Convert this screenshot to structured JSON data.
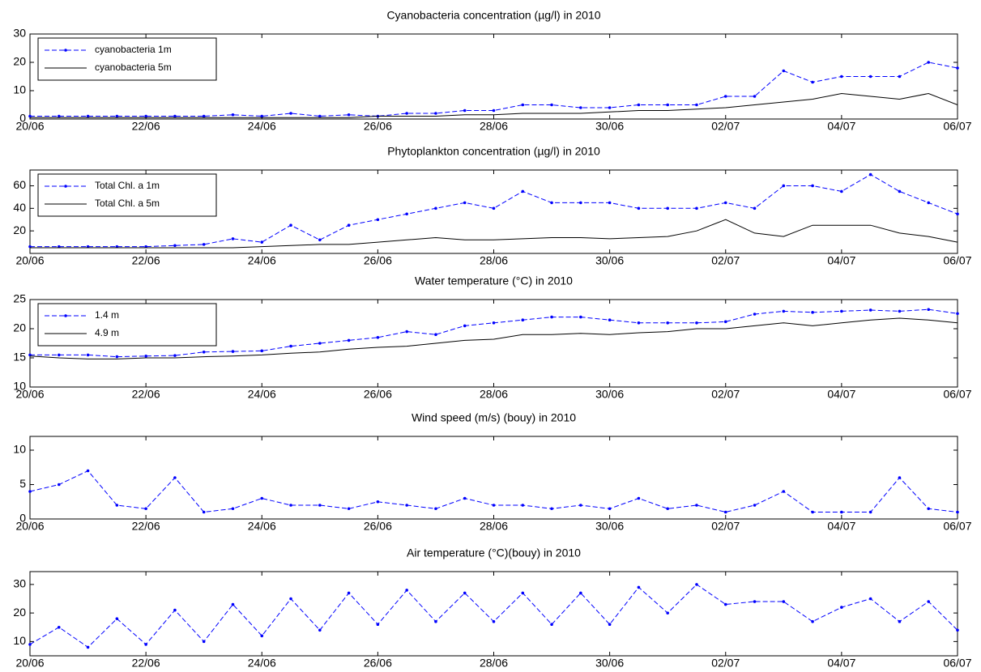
{
  "chart_data": [
    {
      "type": "line",
      "title": "Cyanobacteria concentration (µg/l) in 2010",
      "legend": "upper left",
      "x": [
        0,
        0.5,
        1,
        1.5,
        2,
        2.5,
        3,
        3.5,
        4,
        4.5,
        5,
        5.5,
        6,
        6.5,
        7,
        7.5,
        8,
        8.5,
        9,
        9.5,
        10,
        10.5,
        11,
        11.5,
        12,
        12.5,
        13,
        13.5,
        14,
        14.5,
        15,
        15.5,
        16
      ],
      "xlim": [
        0,
        16
      ],
      "xticks": [
        {
          "value": 0,
          "label": "20/06"
        },
        {
          "value": 2,
          "label": "22/06"
        },
        {
          "value": 4,
          "label": "24/06"
        },
        {
          "value": 6,
          "label": "26/06"
        },
        {
          "value": 8,
          "label": "28/06"
        },
        {
          "value": 10,
          "label": "30/06"
        },
        {
          "value": 12,
          "label": "02/07"
        },
        {
          "value": 14,
          "label": "04/07"
        },
        {
          "value": 16,
          "label": "06/07"
        }
      ],
      "ylim": [
        0,
        30
      ],
      "yticks": [
        0,
        10,
        20,
        30
      ],
      "series": [
        {
          "name": "cyanobacteria 1m",
          "color": "#0000ff",
          "linestyle": "dashed",
          "values": [
            1,
            1,
            1,
            1,
            1,
            1,
            1,
            1.5,
            1,
            2,
            1,
            1.5,
            1,
            2,
            2,
            3,
            3,
            5,
            5,
            4,
            4,
            5,
            5,
            5,
            8,
            8,
            17,
            13,
            15,
            15,
            15,
            20,
            18
          ]
        },
        {
          "name": "cyanobacteria 5m",
          "color": "#000000",
          "linestyle": "solid",
          "values": [
            0.5,
            0.5,
            0.5,
            0.5,
            0.5,
            0.5,
            0.5,
            0.5,
            0.5,
            0.5,
            0.5,
            0.5,
            1,
            1,
            1,
            1.5,
            1.5,
            2,
            2,
            2,
            2.5,
            3,
            3,
            3.5,
            4,
            5,
            6,
            7,
            9,
            8,
            7,
            9,
            5
          ]
        }
      ]
    },
    {
      "type": "line",
      "title": "Phytoplankton concentration (µg/l) in 2010",
      "legend": "upper left",
      "x": [
        0,
        0.5,
        1,
        1.5,
        2,
        2.5,
        3,
        3.5,
        4,
        4.5,
        5,
        5.5,
        6,
        6.5,
        7,
        7.5,
        8,
        8.5,
        9,
        9.5,
        10,
        10.5,
        11,
        11.5,
        12,
        12.5,
        13,
        13.5,
        14,
        14.5,
        15,
        15.5,
        16
      ],
      "xlim": [
        0,
        16
      ],
      "xticks": [
        {
          "value": 0,
          "label": "20/06"
        },
        {
          "value": 2,
          "label": "22/06"
        },
        {
          "value": 4,
          "label": "24/06"
        },
        {
          "value": 6,
          "label": "26/06"
        },
        {
          "value": 8,
          "label": "28/06"
        },
        {
          "value": 10,
          "label": "30/06"
        },
        {
          "value": 12,
          "label": "02/07"
        },
        {
          "value": 14,
          "label": "04/07"
        },
        {
          "value": 16,
          "label": "06/07"
        }
      ],
      "ylim": [
        0,
        74
      ],
      "yticks": [
        20,
        40,
        60
      ],
      "series": [
        {
          "name": "Total Chl. a 1m",
          "color": "#0000ff",
          "linestyle": "dashed",
          "values": [
            6,
            6,
            6,
            6,
            6,
            7,
            8,
            13,
            10,
            25,
            12,
            25,
            30,
            35,
            40,
            45,
            40,
            55,
            45,
            45,
            45,
            40,
            40,
            40,
            45,
            40,
            60,
            60,
            55,
            70,
            55,
            45,
            35
          ]
        },
        {
          "name": "Total Chl. a 5m",
          "color": "#000000",
          "linestyle": "solid",
          "values": [
            5,
            5,
            5,
            5,
            5,
            5,
            5,
            5,
            6,
            7,
            8,
            8,
            10,
            12,
            14,
            12,
            12,
            13,
            14,
            14,
            13,
            14,
            15,
            20,
            30,
            18,
            15,
            25,
            25,
            25,
            18,
            15,
            10
          ]
        }
      ]
    },
    {
      "type": "line",
      "title": "Water temperature (°C) in 2010",
      "legend": "upper left",
      "x": [
        0,
        0.5,
        1,
        1.5,
        2,
        2.5,
        3,
        3.5,
        4,
        4.5,
        5,
        5.5,
        6,
        6.5,
        7,
        7.5,
        8,
        8.5,
        9,
        9.5,
        10,
        10.5,
        11,
        11.5,
        12,
        12.5,
        13,
        13.5,
        14,
        14.5,
        15,
        15.5,
        16
      ],
      "xlim": [
        0,
        16
      ],
      "xticks": [
        {
          "value": 0,
          "label": "20/06"
        },
        {
          "value": 2,
          "label": "22/06"
        },
        {
          "value": 4,
          "label": "24/06"
        },
        {
          "value": 6,
          "label": "26/06"
        },
        {
          "value": 8,
          "label": "28/06"
        },
        {
          "value": 10,
          "label": "30/06"
        },
        {
          "value": 12,
          "label": "02/07"
        },
        {
          "value": 14,
          "label": "04/07"
        },
        {
          "value": 16,
          "label": "06/07"
        }
      ],
      "ylim": [
        10,
        25
      ],
      "yticks": [
        10,
        15,
        20,
        25
      ],
      "series": [
        {
          "name": "1.4 m",
          "color": "#0000ff",
          "linestyle": "dashed",
          "values": [
            15.5,
            15.5,
            15.5,
            15.2,
            15.3,
            15.4,
            16,
            16.1,
            16.2,
            17,
            17.5,
            18,
            18.5,
            19.5,
            19,
            20.5,
            21,
            21.5,
            22,
            22,
            21.5,
            21,
            21,
            21,
            21.2,
            22.5,
            23,
            22.8,
            23,
            23.2,
            23,
            23.3,
            22.6
          ]
        },
        {
          "name": "4.9 m",
          "color": "#000000",
          "linestyle": "solid",
          "values": [
            15.3,
            15,
            14.8,
            14.8,
            15,
            15,
            15.2,
            15.3,
            15.5,
            15.8,
            16,
            16.5,
            16.8,
            17,
            17.5,
            18,
            18.2,
            19,
            19,
            19.2,
            19,
            19.3,
            19.5,
            20,
            20,
            20.5,
            21,
            20.5,
            21,
            21.5,
            21.8,
            21.5,
            21
          ]
        }
      ]
    },
    {
      "type": "line",
      "title": "Wind speed (m/s) (bouy) in 2010",
      "x": [
        0,
        0.5,
        1,
        1.5,
        2,
        2.5,
        3,
        3.5,
        4,
        4.5,
        5,
        5.5,
        6,
        6.5,
        7,
        7.5,
        8,
        8.5,
        9,
        9.5,
        10,
        10.5,
        11,
        11.5,
        12,
        12.5,
        13,
        13.5,
        14,
        14.5,
        15,
        15.5,
        16
      ],
      "xlim": [
        0,
        16
      ],
      "xticks": [
        {
          "value": 0,
          "label": "20/06"
        },
        {
          "value": 2,
          "label": "22/06"
        },
        {
          "value": 4,
          "label": "24/06"
        },
        {
          "value": 6,
          "label": "26/06"
        },
        {
          "value": 8,
          "label": "28/06"
        },
        {
          "value": 10,
          "label": "30/06"
        },
        {
          "value": 12,
          "label": "02/07"
        },
        {
          "value": 14,
          "label": "04/07"
        },
        {
          "value": 16,
          "label": "06/07"
        }
      ],
      "ylim": [
        0,
        12
      ],
      "yticks": [
        0,
        5,
        10
      ],
      "series": [
        {
          "color": "#0000ff",
          "linestyle": "dashed",
          "values": [
            4,
            5,
            7,
            2,
            1.5,
            6,
            1,
            1.5,
            3,
            2,
            2,
            1.5,
            2.5,
            2,
            1.5,
            3,
            2,
            2,
            1.5,
            2,
            1.5,
            3,
            1.5,
            2,
            1,
            2,
            4,
            1,
            1,
            1,
            6,
            1.5,
            1
          ]
        }
      ]
    },
    {
      "type": "line",
      "title": "Air temperature (°C)(bouy) in 2010",
      "x": [
        0,
        0.5,
        1,
        1.5,
        2,
        2.5,
        3,
        3.5,
        4,
        4.5,
        5,
        5.5,
        6,
        6.5,
        7,
        7.5,
        8,
        8.5,
        9,
        9.5,
        10,
        10.5,
        11,
        11.5,
        12,
        12.5,
        13,
        13.5,
        14,
        14.5,
        15,
        15.5,
        16
      ],
      "xlim": [
        0,
        16
      ],
      "xticks": [
        {
          "value": 0,
          "label": "20/06"
        },
        {
          "value": 2,
          "label": "22/06"
        },
        {
          "value": 4,
          "label": "24/06"
        },
        {
          "value": 6,
          "label": "26/06"
        },
        {
          "value": 8,
          "label": "28/06"
        },
        {
          "value": 10,
          "label": "30/06"
        },
        {
          "value": 12,
          "label": "02/07"
        },
        {
          "value": 14,
          "label": "04/07"
        },
        {
          "value": 16,
          "label": "06/07"
        }
      ],
      "ylim": [
        5,
        34.5
      ],
      "yticks": [
        10,
        20,
        30
      ],
      "series": [
        {
          "color": "#0000ff",
          "linestyle": "dashed",
          "values": [
            9,
            15,
            8,
            18,
            9,
            21,
            10,
            23,
            12,
            25,
            14,
            27,
            16,
            28,
            17,
            27,
            17,
            27,
            16,
            27,
            16,
            29,
            20,
            30,
            23,
            24,
            24,
            17,
            22,
            25,
            17,
            24,
            14
          ]
        }
      ]
    }
  ]
}
